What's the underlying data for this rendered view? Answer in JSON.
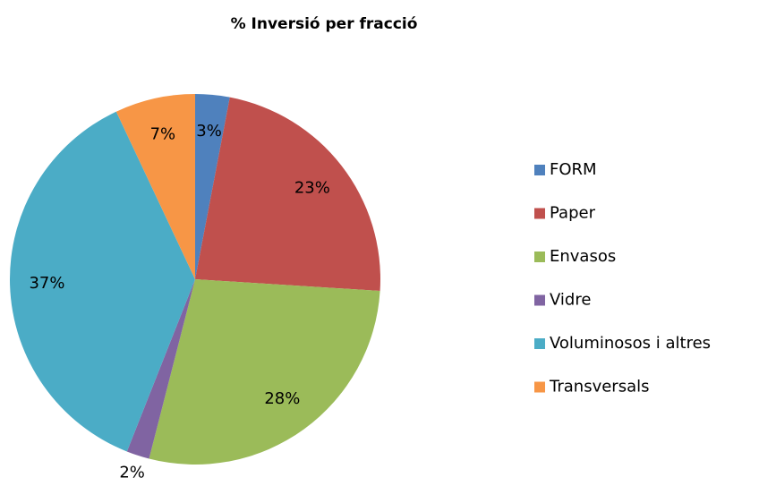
{
  "chart_data": {
    "type": "pie",
    "title": "% Inversió per fracció",
    "categories": [
      "FORM",
      "Paper",
      "Envasos",
      "Vidre",
      "Voluminosos i altres",
      "Transversals"
    ],
    "values": [
      3,
      23,
      28,
      2,
      37,
      7
    ],
    "value_labels": [
      "3%",
      "23%",
      "28%",
      "2%",
      "37%",
      "7%"
    ],
    "colors": [
      "#4f81bd",
      "#c0504d",
      "#9bbb59",
      "#8064a2",
      "#4bacc6",
      "#f79646"
    ],
    "legend": "right"
  }
}
